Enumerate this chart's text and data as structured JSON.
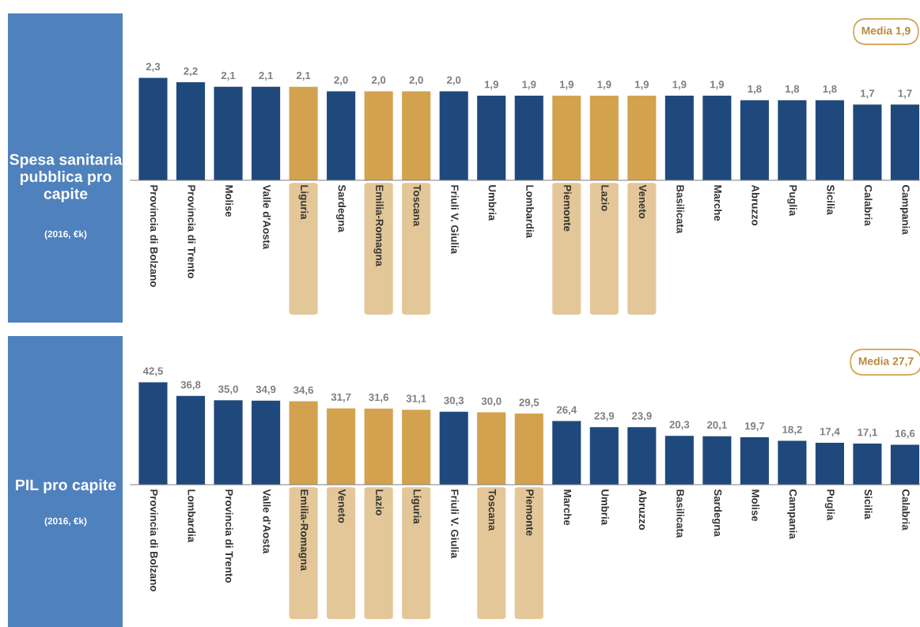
{
  "chart_data": [
    {
      "type": "bar",
      "title": "Spesa sanitaria pubblica pro capite",
      "subtitle": "(2016, €k)",
      "categories": [
        "Provincia di Bolzano",
        "Provincia di Trento",
        "Molise",
        "Valle d'Aosta",
        "Liguria",
        "Sardegna",
        "Emilia-Romagna",
        "Toscana",
        "Friuli V. Giulia",
        "Umbria",
        "Lombardia",
        "Piemonte",
        "Lazio",
        "Veneto",
        "Basilicata",
        "Marche",
        "Abruzzo",
        "Puglia",
        "Sicilia",
        "Calabria",
        "Campania"
      ],
      "values": [
        2.3,
        2.2,
        2.1,
        2.1,
        2.1,
        2.0,
        2.0,
        2.0,
        2.0,
        1.9,
        1.9,
        1.9,
        1.9,
        1.9,
        1.9,
        1.9,
        1.8,
        1.8,
        1.8,
        1.7,
        1.7
      ],
      "value_labels": [
        "2,3",
        "2,2",
        "2,1",
        "2,1",
        "2,1",
        "2,0",
        "2,0",
        "2,0",
        "2,0",
        "1,9",
        "1,9",
        "1,9",
        "1,9",
        "1,9",
        "1,9",
        "1,9",
        "1,8",
        "1,8",
        "1,8",
        "1,7",
        "1,7"
      ],
      "colors": [
        "#1f497d",
        "#1f497d",
        "#1f497d",
        "#1f497d",
        "#d3a24f",
        "#1f497d",
        "#d3a24f",
        "#d3a24f",
        "#1f497d",
        "#1f497d",
        "#1f497d",
        "#d3a24f",
        "#d3a24f",
        "#d3a24f",
        "#1f497d",
        "#1f497d",
        "#1f497d",
        "#1f497d",
        "#1f497d",
        "#1f497d",
        "#1f497d"
      ],
      "annotations": [
        "Media 1,9"
      ]
    },
    {
      "type": "bar",
      "title": "PIL pro capite",
      "subtitle": "(2016, €k)",
      "categories": [
        "Provincia di Bolzano",
        "Lombardia",
        "Provincia di Trento",
        "Valle d'Aosta",
        "Emilia-Romagna",
        "Veneto",
        "Lazio",
        "Liguria",
        "Friuli V. Giulia",
        "Toscana",
        "Piemonte",
        "Marche",
        "Umbria",
        "Abruzzo",
        "Basilicata",
        "Sardegna",
        "Molise",
        "Campania",
        "Puglia",
        "Sicilia",
        "Calabria"
      ],
      "values": [
        42.5,
        36.8,
        35.0,
        34.9,
        34.6,
        31.7,
        31.6,
        31.1,
        30.3,
        30.0,
        29.5,
        26.4,
        23.9,
        23.9,
        20.3,
        20.1,
        19.7,
        18.2,
        17.4,
        17.1,
        16.6
      ],
      "value_labels": [
        "42,5",
        "36,8",
        "35,0",
        "34,9",
        "34,6",
        "31,7",
        "31,6",
        "31,1",
        "30,3",
        "30,0",
        "29,5",
        "26,4",
        "23,9",
        "23,9",
        "20,3",
        "20,1",
        "19,7",
        "18,2",
        "17,4",
        "17,1",
        "16,6"
      ],
      "colors": [
        "#1f497d",
        "#1f497d",
        "#1f497d",
        "#1f497d",
        "#d3a24f",
        "#d3a24f",
        "#d3a24f",
        "#d3a24f",
        "#1f497d",
        "#d3a24f",
        "#d3a24f",
        "#1f497d",
        "#1f497d",
        "#1f497d",
        "#1f497d",
        "#1f497d",
        "#1f497d",
        "#1f497d",
        "#1f497d",
        "#1f497d",
        "#1f497d"
      ],
      "annotations": [
        "Media 27,7"
      ]
    }
  ]
}
